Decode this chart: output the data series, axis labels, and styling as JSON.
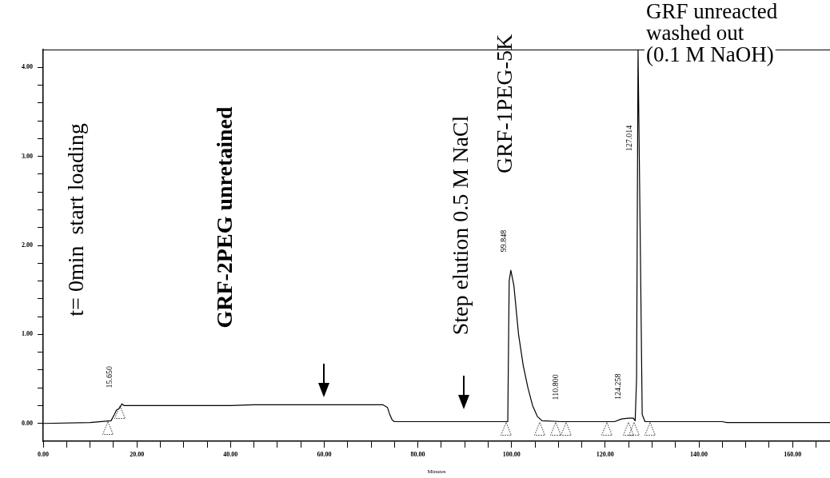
{
  "chart_data": {
    "type": "line",
    "xlabel": "Minutes",
    "color": "#000000",
    "grid": false,
    "legend": false,
    "marker": "none",
    "line_style": "solid",
    "xlim": [
      0,
      168
    ],
    "ylim": [
      -0.2,
      4.2
    ],
    "xticks": [
      {
        "value": 0,
        "label": "0.00"
      },
      {
        "value": 5,
        "label": null
      },
      {
        "value": 10,
        "label": null
      },
      {
        "value": 15,
        "label": null
      },
      {
        "value": 20,
        "label": "20.00"
      },
      {
        "value": 25,
        "label": null
      },
      {
        "value": 30,
        "label": null
      },
      {
        "value": 35,
        "label": null
      },
      {
        "value": 40,
        "label": "40.00"
      },
      {
        "value": 45,
        "label": null
      },
      {
        "value": 50,
        "label": null
      },
      {
        "value": 55,
        "label": null
      },
      {
        "value": 60,
        "label": "60.00"
      },
      {
        "value": 65,
        "label": null
      },
      {
        "value": 70,
        "label": null
      },
      {
        "value": 75,
        "label": null
      },
      {
        "value": 80,
        "label": "80.00"
      },
      {
        "value": 85,
        "label": null
      },
      {
        "value": 90,
        "label": null
      },
      {
        "value": 95,
        "label": null
      },
      {
        "value": 100,
        "label": "100.00"
      },
      {
        "value": 105,
        "label": null
      },
      {
        "value": 110,
        "label": null
      },
      {
        "value": 115,
        "label": null
      },
      {
        "value": 120,
        "label": "120.00"
      },
      {
        "value": 125,
        "label": null
      },
      {
        "value": 130,
        "label": null
      },
      {
        "value": 135,
        "label": null
      },
      {
        "value": 140,
        "label": "140.00"
      },
      {
        "value": 145,
        "label": null
      },
      {
        "value": 150,
        "label": null
      },
      {
        "value": 155,
        "label": null
      },
      {
        "value": 160,
        "label": "160.00"
      },
      {
        "value": 165,
        "label": null
      }
    ],
    "yticks": [
      {
        "value": 0,
        "label": "0.00"
      },
      {
        "value": 0.2,
        "label": null
      },
      {
        "value": 0.4,
        "label": null
      },
      {
        "value": 0.6,
        "label": null
      },
      {
        "value": 0.8,
        "label": null
      },
      {
        "value": 1,
        "label": "1.00"
      },
      {
        "value": 1.2,
        "label": null
      },
      {
        "value": 1.4,
        "label": null
      },
      {
        "value": 1.6,
        "label": null
      },
      {
        "value": 1.8,
        "label": null
      },
      {
        "value": 2,
        "label": "2.00"
      },
      {
        "value": 2.2,
        "label": null
      },
      {
        "value": 2.4,
        "label": null
      },
      {
        "value": 2.6,
        "label": null
      },
      {
        "value": 2.8,
        "label": null
      },
      {
        "value": 3,
        "label": "3.00"
      },
      {
        "value": 3.2,
        "label": null
      },
      {
        "value": 3.4,
        "label": null
      },
      {
        "value": 3.6,
        "label": null
      },
      {
        "value": 3.8,
        "label": null
      },
      {
        "value": 4,
        "label": "4.00"
      }
    ],
    "x": [
      0,
      10,
      14.5,
      15.2,
      15.65,
      16.3,
      16.8,
      17.3,
      20,
      40,
      45,
      60,
      72.5,
      73.5,
      74,
      74.5,
      75,
      90,
      99.2,
      99.5,
      99.85,
      100.5,
      101.5,
      102.5,
      103.5,
      104.5,
      105.5,
      106.5,
      110.8,
      122,
      123.5,
      125,
      126,
      126.4,
      126.7,
      127.014,
      127.5,
      127.9,
      128.5,
      145,
      146,
      168
    ],
    "values": [
      0,
      0.01,
      0.03,
      0.1,
      0.15,
      0.17,
      0.22,
      0.2,
      0.2,
      0.2,
      0.21,
      0.21,
      0.21,
      0.18,
      0.1,
      0.04,
      0.02,
      0.02,
      0.02,
      1.6,
      1.72,
      1.55,
      1,
      0.65,
      0.4,
      0.2,
      0.08,
      0.03,
      0.02,
      0.02,
      0.05,
      0.06,
      0.06,
      0.03,
      0.5,
      4.2,
      2,
      0.1,
      0.02,
      0.02,
      0.01,
      0.01
    ],
    "annotations": [
      "t= 0min  start loading",
      "GRF-2PEG unretained",
      "Step elution 0.5 M NaCl",
      "GRF-1PEG-5K",
      "GRF unreacted\nwashed out\n(0.1 M NaOH)",
      {
        "text": "15.650",
        "x": 15.65,
        "y": 0.2
      },
      {
        "text": "99.848",
        "x": 99.848,
        "y": 1.72
      },
      {
        "text": "110.800",
        "x": 110.8,
        "y": 0.02
      },
      {
        "text": "124.258",
        "x": 124.258,
        "y": 0.06
      },
      {
        "text": "127.014",
        "x": 127.014,
        "y": 3.2
      }
    ]
  }
}
